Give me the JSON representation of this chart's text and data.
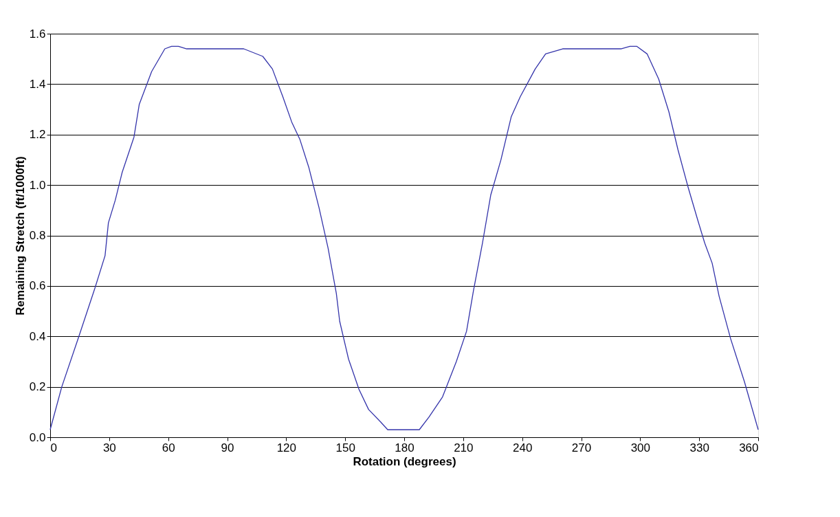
{
  "chart_data": {
    "type": "line",
    "xlabel": "Rotation (degrees)",
    "ylabel": "Remaining Stretch  (ft/1000ft)",
    "xlim": [
      0,
      360
    ],
    "xticks": [
      0,
      30,
      60,
      90,
      120,
      150,
      180,
      210,
      240,
      270,
      300,
      330,
      360
    ],
    "ylim": [
      0,
      1.6
    ],
    "yticks": [
      {
        "value": 0,
        "label": "0.0"
      },
      0.2,
      0.4,
      0.6,
      0.8,
      {
        "value": 1,
        "label": "1.0"
      },
      1.2,
      1.4,
      1.6
    ],
    "grid": "y",
    "marker": "none",
    "line_style": "solid",
    "series": [
      {
        "color": "#3333aa",
        "x": [
          0,
          5.9,
          14.6,
          22.7,
          27.9,
          29.6,
          33.1,
          36.6,
          42.6,
          45.3,
          51.6,
          58.3,
          61.7,
          65.2,
          69.4,
          98.4,
          108.1,
          113,
          118.3,
          122.8,
          127,
          131.5,
          136.7,
          141.3,
          145.5,
          147.2,
          151.7,
          157,
          161.9,
          168.1,
          171.6,
          176.8,
          187.7,
          192.6,
          199.5,
          206.5,
          211.7,
          215.2,
          219.8,
          224,
          229.2,
          234.4,
          239,
          246.6,
          251.9,
          260.6,
          290.2,
          294.8,
          298.2,
          303.5,
          309.4,
          314.6,
          319.2,
          324.4,
          329.3,
          332.8,
          336.6,
          340.1,
          346,
          353,
          360
        ],
        "values": [
          0.03,
          0.2,
          0.4,
          0.59,
          0.72,
          0.85,
          0.94,
          1.05,
          1.19,
          1.32,
          1.45,
          1.54,
          1.55,
          1.55,
          1.54,
          1.54,
          1.51,
          1.46,
          1.35,
          1.25,
          1.18,
          1.07,
          0.91,
          0.75,
          0.57,
          0.46,
          0.31,
          0.19,
          0.11,
          0.06,
          0.03,
          0.03,
          0.03,
          0.08,
          0.16,
          0.3,
          0.42,
          0.58,
          0.77,
          0.96,
          1.1,
          1.27,
          1.35,
          1.46,
          1.52,
          1.54,
          1.54,
          1.55,
          1.55,
          1.52,
          1.42,
          1.29,
          1.14,
          0.99,
          0.86,
          0.77,
          0.69,
          0.56,
          0.39,
          0.22,
          0.03
        ]
      }
    ]
  }
}
